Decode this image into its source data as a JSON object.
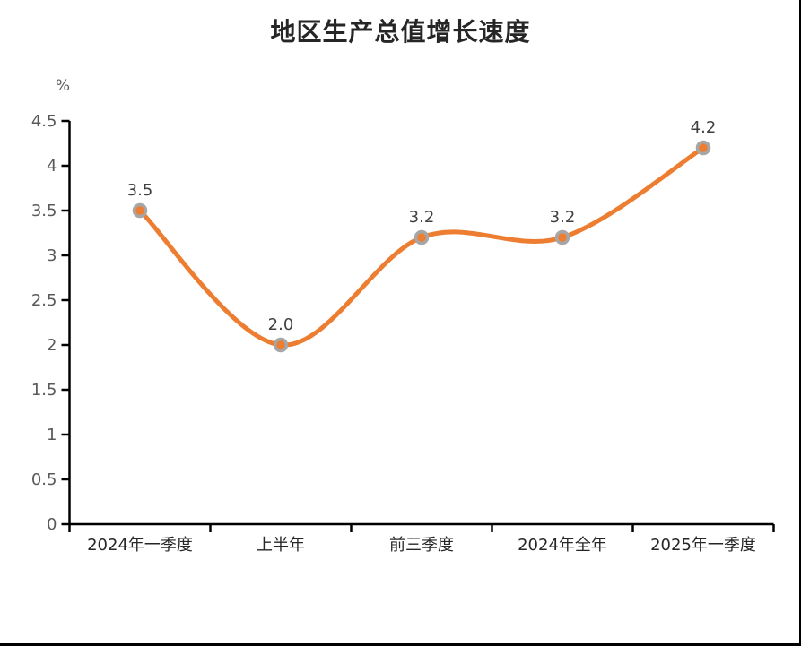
{
  "chart_data": {
    "type": "line",
    "title": "地区生产总值增长速度",
    "unit_label": "%",
    "categories": [
      "2024年一季度",
      "上半年",
      "前三季度",
      "2024年全年",
      "2025年一季度"
    ],
    "series": [
      {
        "values": [
          3.5,
          2.0,
          3.2,
          3.2,
          4.2
        ]
      }
    ],
    "data_labels": [
      "3.5",
      "2.0",
      "3.2",
      "3.2",
      "4.2"
    ],
    "yticks": [
      "0",
      "0.5",
      "1",
      "1.5",
      "2",
      "2.5",
      "3",
      "3.5",
      "4",
      "4.5"
    ],
    "ylim": [
      0,
      4.5
    ],
    "grid": false,
    "legend": "none",
    "smooth": true,
    "colors": {
      "line": "#ED7D31",
      "marker_fill": "#ED7D31",
      "marker_stroke": "#A6A6A6",
      "axis": "#000000",
      "ytick_label": "#595959",
      "xcat_label": "#262626",
      "data_label": "#404040"
    }
  }
}
